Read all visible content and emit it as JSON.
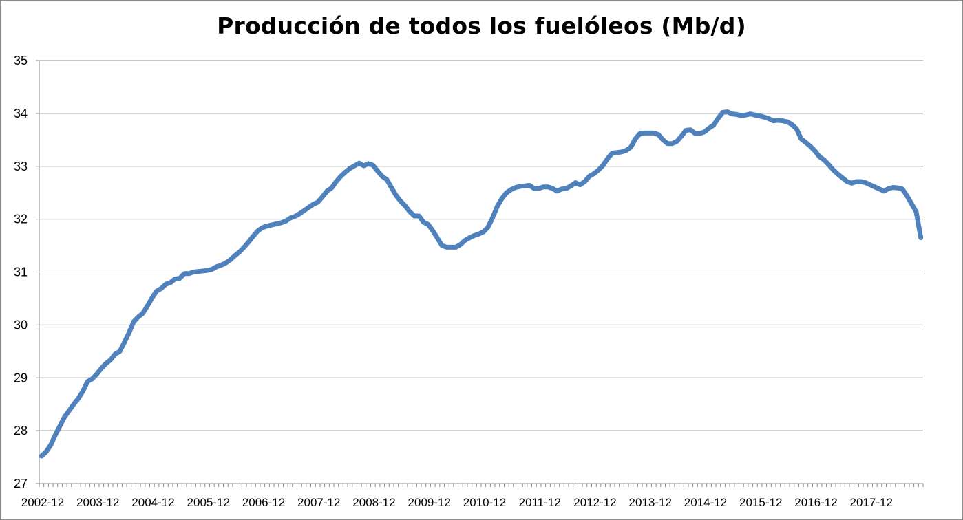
{
  "chart_data": {
    "type": "line",
    "title": "Producción de todos los fuelóleos (Mb/d)",
    "xlabel": "",
    "ylabel": "",
    "ylim": [
      27,
      35
    ],
    "yticks": [
      27,
      28,
      29,
      30,
      31,
      32,
      33,
      34,
      35
    ],
    "x_tick_labels": [
      "2002-12",
      "2003-12",
      "2004-12",
      "2005-12",
      "2006-12",
      "2007-12",
      "2008-12",
      "2009-12",
      "2010-12",
      "2011-12",
      "2012-12",
      "2013-12",
      "2014-12",
      "2015-12",
      "2016-12",
      "2017-12"
    ],
    "grid": true,
    "legend": "none",
    "series_color": "#4f81bd",
    "x_start": "2002-12",
    "series": [
      {
        "values": [
          27.52,
          27.6,
          27.73,
          27.92,
          28.09,
          28.26,
          28.38,
          28.5,
          28.61,
          28.75,
          28.93,
          28.98,
          29.07,
          29.18,
          29.27,
          29.34,
          29.45,
          29.5,
          29.67,
          29.85,
          30.06,
          30.15,
          30.22,
          30.36,
          30.51,
          30.64,
          30.69,
          30.77,
          30.8,
          30.87,
          30.88,
          30.97,
          30.97,
          31.0,
          31.01,
          31.02,
          31.03,
          31.05,
          31.1,
          31.13,
          31.17,
          31.23,
          31.31,
          31.38,
          31.47,
          31.57,
          31.68,
          31.78,
          31.84,
          31.87,
          31.89,
          31.91,
          31.93,
          31.96,
          32.02,
          32.05,
          32.1,
          32.16,
          32.22,
          32.28,
          32.32,
          32.42,
          32.53,
          32.59,
          32.71,
          32.81,
          32.89,
          32.96,
          33.01,
          33.06,
          33.01,
          33.05,
          33.02,
          32.91,
          32.81,
          32.75,
          32.6,
          32.45,
          32.34,
          32.25,
          32.14,
          32.06,
          32.06,
          31.94,
          31.9,
          31.78,
          31.64,
          31.5,
          31.47,
          31.47,
          31.47,
          31.52,
          31.6,
          31.65,
          31.69,
          31.72,
          31.76,
          31.85,
          32.03,
          32.24,
          32.39,
          32.5,
          32.56,
          32.6,
          32.62,
          32.63,
          32.64,
          32.58,
          32.58,
          32.61,
          32.61,
          32.58,
          32.53,
          32.57,
          32.58,
          32.63,
          32.69,
          32.65,
          32.71,
          32.81,
          32.86,
          32.93,
          33.02,
          33.15,
          33.25,
          33.26,
          33.27,
          33.3,
          33.36,
          33.52,
          33.62,
          33.63,
          33.63,
          33.63,
          33.6,
          33.5,
          33.43,
          33.43,
          33.47,
          33.57,
          33.68,
          33.69,
          33.62,
          33.62,
          33.65,
          33.72,
          33.78,
          33.91,
          34.02,
          34.03,
          33.99,
          33.98,
          33.96,
          33.97,
          33.99,
          33.97,
          33.95,
          33.93,
          33.9,
          33.86,
          33.87,
          33.86,
          33.84,
          33.79,
          33.71,
          33.52,
          33.45,
          33.38,
          33.29,
          33.18,
          33.12,
          33.03,
          32.93,
          32.85,
          32.78,
          32.71,
          32.68,
          32.71,
          32.71,
          32.69,
          32.65,
          32.61,
          32.57,
          32.53,
          32.58,
          32.6,
          32.59,
          32.57,
          32.44,
          32.29,
          32.14,
          31.65
        ]
      }
    ]
  }
}
